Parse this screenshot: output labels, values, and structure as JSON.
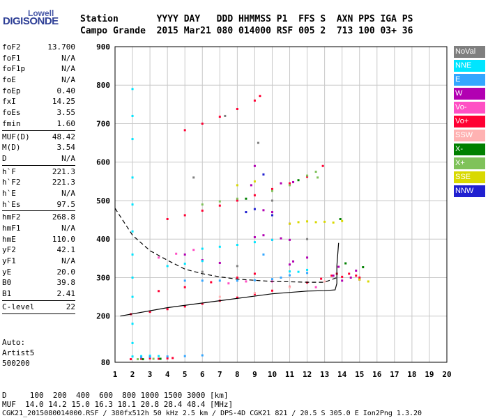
{
  "logo": {
    "line1": "Lowell",
    "line2": "DIGISONDE"
  },
  "header": {
    "row1": "Station       YYYY DAY   DDD HHMMSS P1  FFS S  AXN PPS IGA PS",
    "row2": "Campo Grande  2015 Mar21 080 014000 RSF 005 2  713 100 03+ 36"
  },
  "params": [
    {
      "name": "foF2",
      "value": "13.700"
    },
    {
      "name": "foF1",
      "value": "N/A"
    },
    {
      "name": "foF1p",
      "value": "N/A"
    },
    {
      "name": "foE",
      "value": "N/A"
    },
    {
      "name": "foEp",
      "value": "0.40"
    },
    {
      "name": "fxI",
      "value": "14.25"
    },
    {
      "name": "foEs",
      "value": "3.55"
    },
    {
      "name": "fmin",
      "value": "1.60"
    },
    {
      "sep": true
    },
    {
      "name": "MUF(D)",
      "value": "48.42"
    },
    {
      "name": "M(D)",
      "value": "3.54"
    },
    {
      "name": "D",
      "value": "N/A"
    },
    {
      "sep": true
    },
    {
      "name": "h`F",
      "value": "221.3"
    },
    {
      "name": "h`F2",
      "value": "221.3"
    },
    {
      "name": "h`E",
      "value": "N/A"
    },
    {
      "name": "h`Es",
      "value": "97.5"
    },
    {
      "sep": true
    },
    {
      "name": "hmF2",
      "value": "268.8"
    },
    {
      "name": "hmF1",
      "value": "N/A"
    },
    {
      "name": "hmE",
      "value": "110.0"
    },
    {
      "name": "yF2",
      "value": "42.1"
    },
    {
      "name": "yF1",
      "value": "N/A"
    },
    {
      "name": "yE",
      "value": "20.0"
    },
    {
      "name": "B0",
      "value": "39.8"
    },
    {
      "name": "B1",
      "value": "2.41"
    },
    {
      "sep": true
    },
    {
      "name": "C-level",
      "value": "22"
    },
    {
      "sep": true
    }
  ],
  "auto": {
    "line1": "Auto:",
    "line2": "Artist5",
    "line3": "500200"
  },
  "legend": [
    {
      "label": "NoVal",
      "color": "#7f7f7f"
    },
    {
      "label": "NNE",
      "color": "#00e5ff"
    },
    {
      "label": "E",
      "color": "#33a6ff"
    },
    {
      "label": "W",
      "color": "#b200b2"
    },
    {
      "label": "Vo-",
      "color": "#ff4fc4"
    },
    {
      "label": "Vo+",
      "color": "#ff0033"
    },
    {
      "label": "SSW",
      "color": "#ffb2b2"
    },
    {
      "label": "X-",
      "color": "#008000"
    },
    {
      "label": "X+",
      "color": "#7fc25a"
    },
    {
      "label": "SSE",
      "color": "#d9d900"
    },
    {
      "label": "NNW",
      "color": "#2020d0"
    }
  ],
  "bottom": {
    "d_row": "D     100  200  400  600  800 1000 1500 3000 [km]",
    "muf_row": "MUF  14.0 14.2 15.0 16.3 18.1 20.8 28.4 48.4 [MHz]",
    "footer": "CGK21_2015080014000.RSF / 380fx512h 50 kHz 2.5 km / DPS-4D CGK21 821 / 20.5 S 305.0 E Ion2Png 1.3.20"
  },
  "chart_data": {
    "type": "scatter",
    "title": "",
    "xlabel": "",
    "ylabel": "",
    "xlim": [
      1,
      20
    ],
    "ylim": [
      80,
      900
    ],
    "x_ticks": [
      1,
      2,
      3,
      4,
      5,
      6,
      7,
      8,
      9,
      10,
      11,
      12,
      13,
      14,
      15,
      16,
      17,
      18,
      19,
      20
    ],
    "y_ticks": [
      80,
      200,
      300,
      400,
      500,
      600,
      700,
      800,
      900
    ],
    "grid": true,
    "series": [
      {
        "name": "Vo+",
        "color": "#ff0033",
        "points": [
          [
            1.9,
            205
          ],
          [
            3,
            211
          ],
          [
            4,
            218
          ],
          [
            5,
            225
          ],
          [
            6,
            232
          ],
          [
            7,
            240
          ],
          [
            8,
            248
          ],
          [
            9,
            257
          ],
          [
            10,
            266
          ],
          [
            11,
            276
          ],
          [
            12,
            287
          ],
          [
            12.8,
            297
          ],
          [
            13.4,
            305
          ],
          [
            13.7,
            310
          ],
          [
            14,
            302
          ],
          [
            14.4,
            310
          ],
          [
            14.8,
            305
          ],
          [
            15,
            300
          ],
          [
            1.9,
            88
          ],
          [
            2.5,
            89
          ],
          [
            3,
            90
          ],
          [
            3.5,
            89
          ],
          [
            4,
            90
          ],
          [
            4.3,
            91
          ],
          [
            3.5,
            265
          ],
          [
            5,
            275
          ],
          [
            6.5,
            288
          ],
          [
            8,
            300
          ],
          [
            9,
            310
          ],
          [
            4,
            452
          ],
          [
            5,
            462
          ],
          [
            6,
            474
          ],
          [
            7,
            487
          ],
          [
            8,
            500
          ],
          [
            9,
            514
          ],
          [
            10,
            530
          ],
          [
            11,
            545
          ],
          [
            12,
            562
          ],
          [
            12.9,
            590
          ],
          [
            5,
            683
          ],
          [
            6,
            700
          ],
          [
            7,
            718
          ],
          [
            8,
            738
          ],
          [
            9,
            760
          ],
          [
            9.3,
            772
          ]
        ]
      },
      {
        "name": "W",
        "color": "#b200b2",
        "points": [
          [
            9,
            405
          ],
          [
            9.5,
            410
          ],
          [
            10,
            398
          ],
          [
            10.5,
            402
          ],
          [
            11,
            398
          ],
          [
            11.2,
            342
          ],
          [
            11,
            334
          ],
          [
            9.5,
            475
          ],
          [
            10,
            470
          ],
          [
            11,
            440
          ],
          [
            13.5,
            305
          ],
          [
            14,
            292
          ],
          [
            14.5,
            300
          ],
          [
            15,
            295
          ],
          [
            14.8,
            318
          ],
          [
            13.8,
            328
          ],
          [
            12,
            352
          ],
          [
            11.2,
            548
          ],
          [
            10.5,
            545
          ],
          [
            8.8,
            540
          ],
          [
            9,
            590
          ],
          [
            7,
            338
          ],
          [
            6,
            345
          ],
          [
            5,
            360
          ]
        ]
      },
      {
        "name": "NNE",
        "color": "#00e5ff",
        "points": [
          [
            2,
            790
          ],
          [
            2,
            720
          ],
          [
            2,
            660
          ],
          [
            2,
            560
          ],
          [
            2,
            490
          ],
          [
            2,
            420
          ],
          [
            2,
            360
          ],
          [
            2,
            300
          ],
          [
            2,
            250
          ],
          [
            2,
            180
          ],
          [
            2,
            130
          ],
          [
            2,
            95
          ],
          [
            2.5,
            96
          ],
          [
            3,
            97
          ],
          [
            3.5,
            96
          ],
          [
            6,
            375
          ],
          [
            7,
            380
          ],
          [
            8,
            385
          ],
          [
            9,
            392
          ],
          [
            10,
            398
          ],
          [
            11,
            316
          ],
          [
            11.5,
            315
          ],
          [
            12,
            320
          ],
          [
            6,
            343
          ],
          [
            5,
            336
          ],
          [
            4,
            330
          ]
        ]
      },
      {
        "name": "E",
        "color": "#33a6ff",
        "points": [
          [
            5,
            292
          ],
          [
            6,
            292
          ],
          [
            7,
            292
          ],
          [
            8,
            292
          ],
          [
            9,
            293
          ],
          [
            10,
            296
          ],
          [
            11,
            306
          ],
          [
            12,
            312
          ],
          [
            2.5,
            93
          ],
          [
            3,
            94
          ],
          [
            4,
            95
          ],
          [
            5,
            96
          ],
          [
            6,
            98
          ],
          [
            10.5,
            300
          ],
          [
            9.5,
            360
          ]
        ]
      },
      {
        "name": "Vo-",
        "color": "#ff4fc4",
        "points": [
          [
            3.5,
            352
          ],
          [
            4.5,
            362
          ],
          [
            5.5,
            372
          ],
          [
            7.5,
            285
          ],
          [
            8.5,
            290
          ],
          [
            10,
            290
          ],
          [
            12.5,
            275
          ]
        ]
      },
      {
        "name": "X+",
        "color": "#7fc25a",
        "points": [
          [
            6,
            490
          ],
          [
            7,
            498
          ],
          [
            8,
            505
          ],
          [
            10,
            525
          ],
          [
            11,
            540
          ],
          [
            12,
            565
          ],
          [
            12.5,
            575
          ],
          [
            2.3,
            88
          ],
          [
            3.2,
            89
          ],
          [
            12.6,
            560
          ]
        ]
      },
      {
        "name": "X-",
        "color": "#008000",
        "points": [
          [
            2.6,
            88
          ],
          [
            3.6,
            89
          ],
          [
            8.5,
            505
          ],
          [
            14.2,
            337
          ],
          [
            15.2,
            327
          ],
          [
            11.5,
            553
          ],
          [
            13.9,
            452
          ]
        ]
      },
      {
        "name": "SSE",
        "color": "#d9d900",
        "points": [
          [
            11,
            440
          ],
          [
            11.5,
            444
          ],
          [
            12,
            446
          ],
          [
            12.5,
            444
          ],
          [
            13,
            445
          ],
          [
            13.5,
            443
          ],
          [
            14,
            447
          ],
          [
            15,
            295
          ],
          [
            15.5,
            290
          ],
          [
            8,
            540
          ],
          [
            9,
            550
          ]
        ]
      },
      {
        "name": "SSW",
        "color": "#ffb2b2",
        "points": [
          [
            7,
            250
          ],
          [
            9,
            260
          ],
          [
            11,
            275
          ],
          [
            13,
            290
          ]
        ]
      },
      {
        "name": "NNW",
        "color": "#2020d0",
        "points": [
          [
            8.5,
            470
          ],
          [
            9,
            478
          ],
          [
            10,
            462
          ],
          [
            9.5,
            568
          ]
        ]
      },
      {
        "name": "NoVal",
        "color": "#7f7f7f",
        "points": [
          [
            6,
            315
          ],
          [
            8,
            330
          ],
          [
            10,
            500
          ],
          [
            12,
            400
          ],
          [
            5.5,
            560
          ],
          [
            9.2,
            650
          ],
          [
            7.3,
            720
          ]
        ]
      }
    ],
    "profile_dashed": [
      [
        1,
        480
      ],
      [
        2,
        410
      ],
      [
        3,
        370
      ],
      [
        4,
        345
      ],
      [
        5,
        322
      ],
      [
        6,
        310
      ],
      [
        7,
        302
      ],
      [
        8,
        296
      ],
      [
        9,
        293
      ],
      [
        10,
        290
      ],
      [
        11,
        289
      ],
      [
        12,
        288
      ],
      [
        13,
        288
      ],
      [
        13.7,
        300
      ]
    ],
    "profile_solid": [
      [
        1.3,
        200
      ],
      [
        4,
        222
      ],
      [
        7,
        240
      ],
      [
        10,
        258
      ],
      [
        12,
        265
      ],
      [
        13,
        266
      ],
      [
        13.6,
        268
      ],
      [
        13.7,
        285
      ],
      [
        13.7,
        330
      ],
      [
        13.8,
        390
      ]
    ]
  }
}
